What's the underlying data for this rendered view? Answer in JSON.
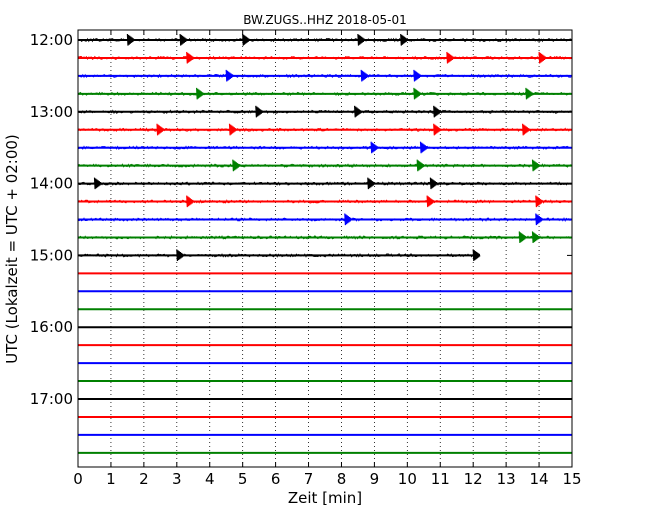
{
  "chart_data": {
    "type": "line",
    "title": "BW.ZUGS..HHZ 2018-05-01",
    "xlabel": "Zeit  [min]",
    "ylabel": "UTC (Lokalzeit = UTC + 02:00)",
    "xlim": [
      0,
      15
    ],
    "x_ticks": [
      "0",
      "1",
      "2",
      "3",
      "4",
      "5",
      "6",
      "7",
      "8",
      "9",
      "10",
      "11",
      "12",
      "13",
      "14",
      "15"
    ],
    "y_tick_labels": [
      "12:00",
      "13:00",
      "14:00",
      "15:00",
      "16:00",
      "17:00"
    ],
    "grid": "vertical dotted",
    "colors": [
      "#000000",
      "#ff0000",
      "#0000ff",
      "#008000"
    ],
    "traces": [
      {
        "start": "12:00",
        "active": true,
        "end_min": 15,
        "events": [
          1.5,
          3.1,
          5,
          8.5,
          9.8
        ]
      },
      {
        "start": "12:15",
        "active": true,
        "end_min": 15,
        "events": [
          3.3,
          11.2,
          14
        ]
      },
      {
        "start": "12:30",
        "active": true,
        "end_min": 15,
        "events": [
          4.5,
          8.6,
          10.2
        ]
      },
      {
        "start": "12:45",
        "active": true,
        "end_min": 15,
        "events": [
          3.6,
          10.2,
          13.6
        ]
      },
      {
        "start": "13:00",
        "active": true,
        "end_min": 15,
        "events": [
          5.4,
          8.4,
          10.8
        ]
      },
      {
        "start": "13:15",
        "active": true,
        "end_min": 15,
        "events": [
          2.4,
          4.6,
          10.8,
          13.5
        ]
      },
      {
        "start": "13:30",
        "active": true,
        "end_min": 15,
        "events": [
          8.9,
          10.4
        ]
      },
      {
        "start": "13:45",
        "active": true,
        "end_min": 15,
        "events": [
          4.7,
          10.3,
          13.8
        ]
      },
      {
        "start": "14:00",
        "active": true,
        "end_min": 15,
        "events": [
          0.5,
          8.8,
          10.7
        ]
      },
      {
        "start": "14:15",
        "active": true,
        "end_min": 15,
        "events": [
          3.3,
          10.6,
          13.9
        ]
      },
      {
        "start": "14:30",
        "active": true,
        "end_min": 15,
        "events": [
          8.1,
          13.9
        ]
      },
      {
        "start": "14:45",
        "active": true,
        "end_min": 15,
        "events": [
          13.4,
          13.8
        ]
      },
      {
        "start": "15:00",
        "active": true,
        "end_min": 12.2,
        "events": [
          3,
          12
        ]
      },
      {
        "start": "15:15",
        "active": false,
        "end_min": 15,
        "events": []
      },
      {
        "start": "15:30",
        "active": false,
        "end_min": 15,
        "events": []
      },
      {
        "start": "15:45",
        "active": false,
        "end_min": 15,
        "events": []
      },
      {
        "start": "16:00",
        "active": false,
        "end_min": 15,
        "events": []
      },
      {
        "start": "16:15",
        "active": false,
        "end_min": 15,
        "events": []
      },
      {
        "start": "16:30",
        "active": false,
        "end_min": 15,
        "events": []
      },
      {
        "start": "16:45",
        "active": false,
        "end_min": 15,
        "events": []
      },
      {
        "start": "17:00",
        "active": false,
        "end_min": 15,
        "events": []
      },
      {
        "start": "17:15",
        "active": false,
        "end_min": 15,
        "events": []
      },
      {
        "start": "17:30",
        "active": false,
        "end_min": 15,
        "events": []
      },
      {
        "start": "17:45",
        "active": false,
        "end_min": 15,
        "events": []
      }
    ]
  }
}
